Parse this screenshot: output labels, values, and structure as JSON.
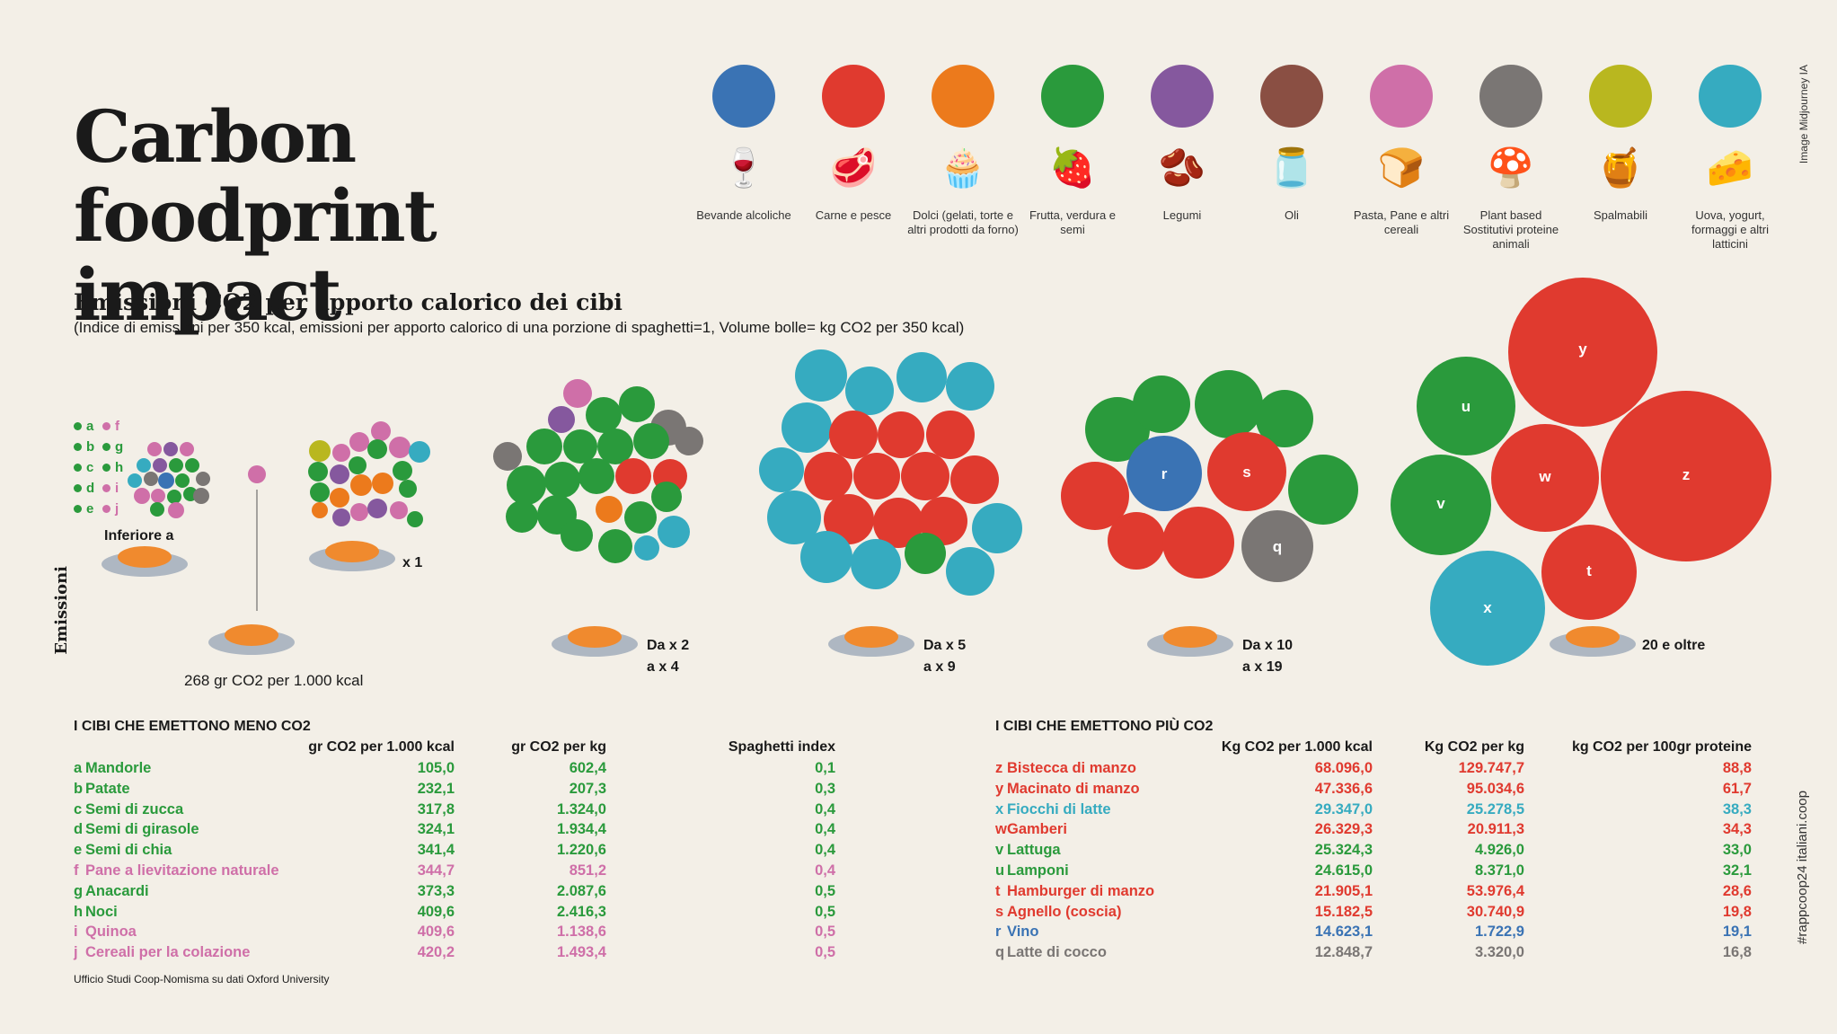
{
  "title": "Carbon  foodprint impact",
  "subtitle": "Emissioni CO2 per apporto calorico dei cibi",
  "note": "(Indice di emissioni per 350 kcal, emissioni per apporto calorico di una porzione di spaghetti=1, Volume bolle= kg CO2 per 350 kcal)",
  "credit_image": "Image Midjourney IA",
  "credit_tag": "#rappcoop24 italiani.coop",
  "axis_label": "Emissioni",
  "source": "Ufficio Studi Coop-Nomisma su dati Oxford University",
  "colors": {
    "bevande": "#3a73b4",
    "carne": "#e03a2f",
    "dolci": "#ec7a1c",
    "frutta": "#2a9a3c",
    "legumi": "#85589e",
    "oli": "#8a4f43",
    "pasta": "#cf6fa8",
    "plant": "#7a7674",
    "spalmabili": "#b9b71f",
    "uova": "#36abc0"
  },
  "legend": [
    {
      "label": "Bevande alcoliche",
      "color": "#3a73b4",
      "icon": "wine-bottle-icon",
      "glyph": "🍷"
    },
    {
      "label": "Carne e pesce",
      "color": "#e03a2f",
      "icon": "meat-fish-icon",
      "glyph": "🥩"
    },
    {
      "label": "Dolci (gelati, torte e altri prodotti da forno)",
      "color": "#ec7a1c",
      "icon": "cake-icon",
      "glyph": "🧁"
    },
    {
      "label": "Frutta, verdura e semi",
      "color": "#2a9a3c",
      "icon": "strawberry-lettuce-icon",
      "glyph": "🍓"
    },
    {
      "label": "Legumi",
      "color": "#85589e",
      "icon": "beans-icon",
      "glyph": "🫘"
    },
    {
      "label": "Oli",
      "color": "#8a4f43",
      "icon": "oil-bottle-icon",
      "glyph": "🫙"
    },
    {
      "label": "Pasta, Pane e altri cereali",
      "color": "#cf6fa8",
      "icon": "bread-pasta-icon",
      "glyph": "🍞"
    },
    {
      "label": "Plant based Sostitutivi proteine animali",
      "color": "#7a7674",
      "icon": "mushroom-coconut-icon",
      "glyph": "🍄"
    },
    {
      "label": "Spalmabili",
      "color": "#b9b71f",
      "icon": "jar-icon",
      "glyph": "🍯"
    },
    {
      "label": "Uova, yogurt, formaggi e altri latticini",
      "color": "#36abc0",
      "icon": "egg-cheese-icon",
      "glyph": "🧀"
    }
  ],
  "key_letters": [
    {
      "letter": "a",
      "color": "#2a9a3c"
    },
    {
      "letter": "f",
      "color": "#cf6fa8"
    },
    {
      "letter": "b",
      "color": "#2a9a3c"
    },
    {
      "letter": "g",
      "color": "#2a9a3c"
    },
    {
      "letter": "c",
      "color": "#2a9a3c"
    },
    {
      "letter": "h",
      "color": "#2a9a3c"
    },
    {
      "letter": "d",
      "color": "#2a9a3c"
    },
    {
      "letter": "i",
      "color": "#cf6fa8"
    },
    {
      "letter": "e",
      "color": "#2a9a3c"
    },
    {
      "letter": "j",
      "color": "#cf6fa8"
    }
  ],
  "groups": {
    "inferiore": "Inferiore a",
    "ref_caption": "268 gr CO2 per 1.000 kcal",
    "x1": "x 1",
    "g2": [
      "Da x 2",
      "a x 4"
    ],
    "g5": [
      "Da x 5",
      "a x 9"
    ],
    "g10": [
      "Da x 10",
      "a x 19"
    ],
    "g20": "20 e oltre"
  },
  "chart_data": [
    {
      "type": "bubble",
      "title": "I CIBI CHE EMETTONO MENO CO2",
      "columns": [
        "gr CO2 per 1.000 kcal",
        "gr CO2 per kg",
        "Spaghetti index"
      ],
      "rows": [
        {
          "key": "a",
          "name": "Mandorle",
          "kcal": "105,0",
          "kg": "602,4",
          "index": "0,1",
          "color": "#2a9a3c"
        },
        {
          "key": "b",
          "name": "Patate",
          "kcal": "232,1",
          "kg": "207,3",
          "index": "0,3",
          "color": "#2a9a3c"
        },
        {
          "key": "c",
          "name": "Semi di zucca",
          "kcal": "317,8",
          "kg": "1.324,0",
          "index": "0,4",
          "color": "#2a9a3c"
        },
        {
          "key": "d",
          "name": "Semi di girasole",
          "kcal": "324,1",
          "kg": "1.934,4",
          "index": "0,4",
          "color": "#2a9a3c"
        },
        {
          "key": "e",
          "name": "Semi di chia",
          "kcal": "341,4",
          "kg": "1.220,6",
          "index": "0,4",
          "color": "#2a9a3c"
        },
        {
          "key": "f",
          "name": "Pane a lievitazione naturale",
          "kcal": "344,7",
          "kg": "851,2",
          "index": "0,4",
          "color": "#cf6fa8"
        },
        {
          "key": "g",
          "name": "Anacardi",
          "kcal": "373,3",
          "kg": "2.087,6",
          "index": "0,5",
          "color": "#2a9a3c"
        },
        {
          "key": "h",
          "name": "Noci",
          "kcal": "409,6",
          "kg": "2.416,3",
          "index": "0,5",
          "color": "#2a9a3c"
        },
        {
          "key": "i",
          "name": "Quinoa",
          "kcal": "409,6",
          "kg": "1.138,6",
          "index": "0,5",
          "color": "#cf6fa8"
        },
        {
          "key": "j",
          "name": "Cereali per la colazione",
          "kcal": "420,2",
          "kg": "1.493,4",
          "index": "0,5",
          "color": "#cf6fa8"
        }
      ]
    },
    {
      "type": "bubble",
      "title": "I CIBI CHE EMETTONO PIÙ CO2",
      "columns": [
        "Kg CO2 per 1.000 kcal",
        "Kg CO2 per kg",
        "kg CO2 per 100gr proteine"
      ],
      "rows": [
        {
          "key": "z",
          "name": "Bistecca di manzo",
          "kcal": "68.096,0",
          "kg": "129.747,7",
          "prot": "88,8",
          "color": "#e03a2f"
        },
        {
          "key": "y",
          "name": "Macinato di manzo",
          "kcal": "47.336,6",
          "kg": "95.034,6",
          "prot": "61,7",
          "color": "#e03a2f"
        },
        {
          "key": "x",
          "name": "Fiocchi di latte",
          "kcal": "29.347,0",
          "kg": "25.278,5",
          "prot": "38,3",
          "color": "#36abc0"
        },
        {
          "key": "w",
          "name": "Gamberi",
          "kcal": "26.329,3",
          "kg": "20.911,3",
          "prot": "34,3",
          "color": "#e03a2f"
        },
        {
          "key": "v",
          "name": "Lattuga",
          "kcal": "25.324,3",
          "kg": "4.926,0",
          "prot": "33,0",
          "color": "#2a9a3c"
        },
        {
          "key": "u",
          "name": "Lamponi",
          "kcal": "24.615,0",
          "kg": "8.371,0",
          "prot": "32,1",
          "color": "#2a9a3c"
        },
        {
          "key": "t",
          "name": "Hamburger di manzo",
          "kcal": "21.905,1",
          "kg": "53.976,4",
          "prot": "28,6",
          "color": "#e03a2f"
        },
        {
          "key": "s",
          "name": "Agnello (coscia)",
          "kcal": "15.182,5",
          "kg": "30.740,9",
          "prot": "19,8",
          "color": "#e03a2f"
        },
        {
          "key": "r",
          "name": "Vino",
          "kcal": "14.623,1",
          "kg": "1.722,9",
          "prot": "19,1",
          "color": "#3a73b4"
        },
        {
          "key": "q",
          "name": "Latte di cocco",
          "kcal": "12.848,7",
          "kg": "3.320,0",
          "prot": "16,8",
          "color": "#7a7674"
        }
      ]
    }
  ]
}
